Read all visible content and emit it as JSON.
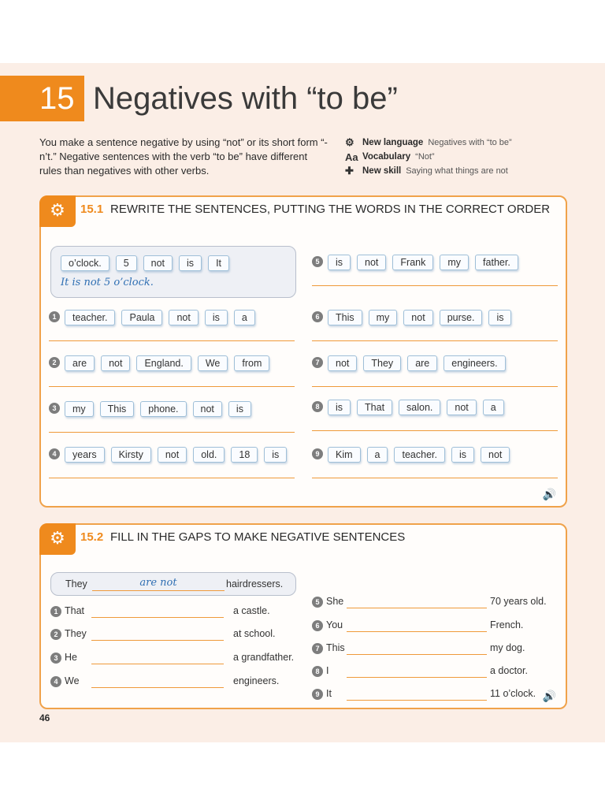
{
  "unit": {
    "number": "15",
    "title": "Negatives with “to be”"
  },
  "intro": "You make a sentence negative by using “not” or its short form “-n’t.” Negative sentences with the verb “to be” have different rules than negatives with other verbs.",
  "features": [
    {
      "icon": "gears-icon",
      "label": "New language",
      "desc": "Negatives with “to be”"
    },
    {
      "icon": "aa-icon",
      "label": "Vocabulary",
      "desc": "“Not”"
    },
    {
      "icon": "puzzle-icon",
      "label": "New skill",
      "desc": "Saying what things are not"
    }
  ],
  "ex1": {
    "code": "15.1",
    "instruction": "REWRITE THE SENTENCES, PUTTING THE WORDS IN THE CORRECT ORDER",
    "example": {
      "tiles": [
        "o’clock.",
        "5",
        "not",
        "is",
        "It"
      ],
      "answer": "It is not 5 o’clock."
    },
    "left": [
      {
        "num": "1",
        "tiles": [
          "teacher.",
          "Paula",
          "not",
          "is",
          "a"
        ]
      },
      {
        "num": "2",
        "tiles": [
          "are",
          "not",
          "England.",
          "We",
          "from"
        ]
      },
      {
        "num": "3",
        "tiles": [
          "my",
          "This",
          "phone.",
          "not",
          "is"
        ]
      },
      {
        "num": "4",
        "tiles": [
          "years",
          "Kirsty",
          "not",
          "old.",
          "18",
          "is"
        ]
      }
    ],
    "right": [
      {
        "num": "5",
        "tiles": [
          "is",
          "not",
          "Frank",
          "my",
          "father."
        ]
      },
      {
        "num": "6",
        "tiles": [
          "This",
          "my",
          "not",
          "purse.",
          "is"
        ]
      },
      {
        "num": "7",
        "tiles": [
          "not",
          "They",
          "are",
          "engineers."
        ]
      },
      {
        "num": "8",
        "tiles": [
          "is",
          "That",
          "salon.",
          "not",
          "a"
        ]
      },
      {
        "num": "9",
        "tiles": [
          "Kim",
          "a",
          "teacher.",
          "is",
          "not"
        ]
      }
    ]
  },
  "ex2": {
    "code": "15.2",
    "instruction": "FILL IN THE GAPS TO MAKE NEGATIVE SENTENCES",
    "example": {
      "subject": "They",
      "answer": "are not",
      "rest": "hairdressers."
    },
    "left": [
      {
        "num": "1",
        "subject": "That",
        "rest": "a castle."
      },
      {
        "num": "2",
        "subject": "They",
        "rest": "at school."
      },
      {
        "num": "3",
        "subject": "He",
        "rest": "a grandfather."
      },
      {
        "num": "4",
        "subject": "We",
        "rest": "engineers."
      }
    ],
    "right": [
      {
        "num": "5",
        "subject": "She",
        "rest": "70 years old."
      },
      {
        "num": "6",
        "subject": "You",
        "rest": "French."
      },
      {
        "num": "7",
        "subject": "This",
        "rest": "my dog."
      },
      {
        "num": "8",
        "subject": "I",
        "rest": "a doctor."
      },
      {
        "num": "9",
        "subject": "It",
        "rest": "11 o’clock."
      }
    ]
  },
  "page_number": "46",
  "icons": {
    "audio": "speaker-icon",
    "exercise": "gear-puzzle-icon"
  },
  "colors": {
    "accent": "#ef8a1d",
    "tile_border": "#9fbfd8",
    "handwriting": "#2f6fb3"
  }
}
